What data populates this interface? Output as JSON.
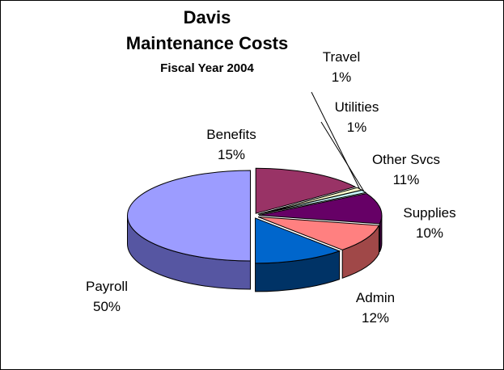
{
  "chart_data": {
    "type": "pie",
    "title": "Davis",
    "subtitle_lines": [
      "Maintenance Costs",
      "Fiscal Year 2004"
    ],
    "slices": [
      {
        "name": "Payroll",
        "percent_label": "50%",
        "value": 50,
        "color": "#9C9CFF",
        "side_color": "#5656A2"
      },
      {
        "name": "Admin",
        "percent_label": "12%",
        "value": 12,
        "color": "#0066CC",
        "side_color": "#003366"
      },
      {
        "name": "Supplies",
        "percent_label": "10%",
        "value": 10,
        "color": "#FF8080",
        "side_color": "#A04848"
      },
      {
        "name": "Other Svcs",
        "percent_label": "11%",
        "value": 11,
        "color": "#660066",
        "side_color": "#3A003A"
      },
      {
        "name": "Utilities",
        "percent_label": "1%",
        "value": 1,
        "color": "#CCFFFF",
        "side_color": "#88AAAA"
      },
      {
        "name": "Travel",
        "percent_label": "1%",
        "value": 1,
        "color": "#FFFFCC",
        "side_color": "#AAAA88"
      },
      {
        "name": "Benefits",
        "percent_label": "15%",
        "value": 15,
        "color": "#993366",
        "side_color": "#5C1F3D"
      }
    ],
    "legend": "none",
    "style": "3d-exploded-pie"
  }
}
